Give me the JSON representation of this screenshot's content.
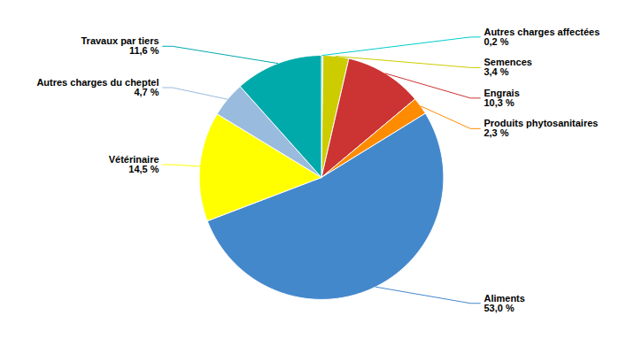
{
  "chart_data": {
    "type": "pie",
    "categories": [
      "Autres charges affectées",
      "Semences",
      "Engrais",
      "Produits phytosanitaires",
      "Aliments",
      "Vétérinaire",
      "Autres charges du cheptel",
      "Travaux par tiers"
    ],
    "values": [
      0.2,
      3.4,
      10.3,
      2.3,
      53.0,
      14.5,
      4.7,
      11.6
    ],
    "value_labels": [
      "0,2 %",
      "3,4 %",
      "10,3 %",
      "2,3 %",
      "53,0 %",
      "14,5 %",
      "4,7 %",
      "11,6 %"
    ],
    "colors": [
      "#00CCCC",
      "#CCCC00",
      "#CC3333",
      "#FF8C00",
      "#4488CC",
      "#FFFF00",
      "#99BBDD",
      "#00AAAA"
    ],
    "data_labels": true
  }
}
